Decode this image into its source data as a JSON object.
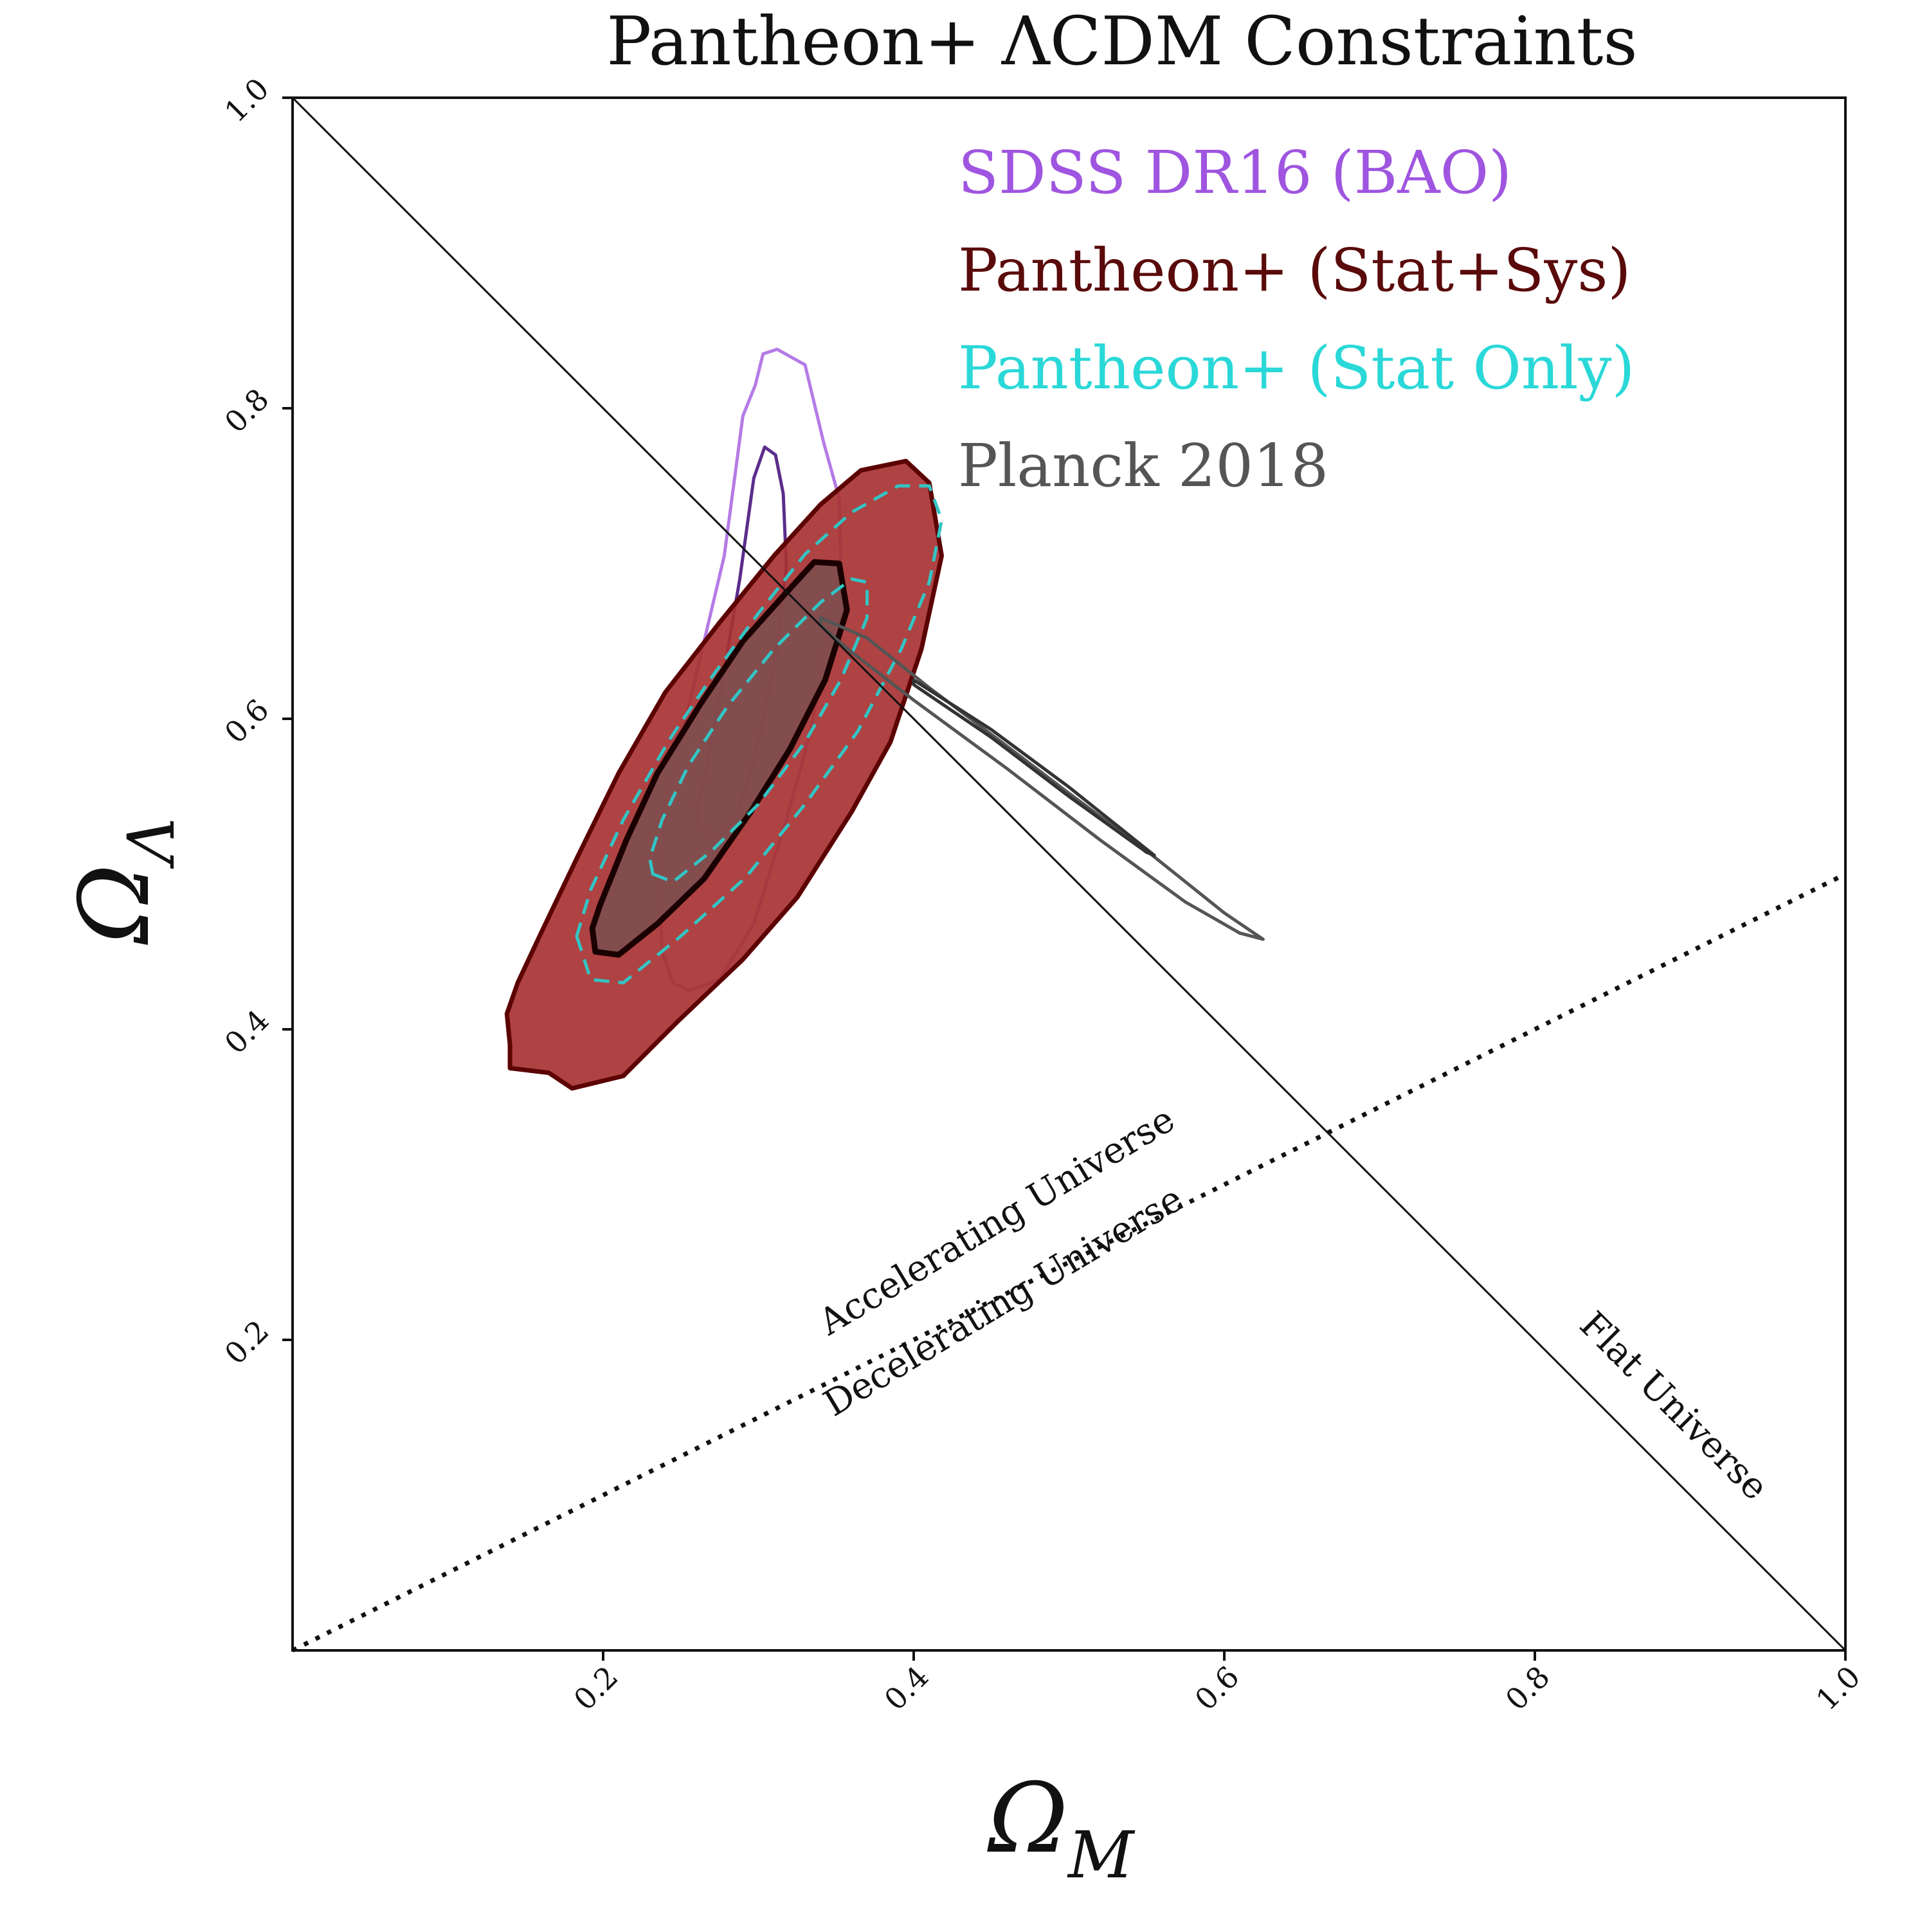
{
  "chart_data": {
    "type": "contour",
    "title": "Pantheon+ ΛCDM Constraints",
    "xlabel": "Ω_M",
    "ylabel": "Ω_Λ",
    "xlabel_main": "Ω",
    "xlabel_sub": "M",
    "ylabel_main": "Ω",
    "ylabel_sub": "Λ",
    "xlim": [
      0.0,
      1.0
    ],
    "ylim": [
      0.0,
      1.0
    ],
    "xticks": [
      {
        "value": 0.2,
        "label": "0.2"
      },
      {
        "value": 0.4,
        "label": "0.4"
      },
      {
        "value": 0.6,
        "label": "0.6"
      },
      {
        "value": 0.8,
        "label": "0.8"
      },
      {
        "value": 1.0,
        "label": "1.0"
      }
    ],
    "yticks": [
      {
        "value": 0.2,
        "label": "0.2"
      },
      {
        "value": 0.4,
        "label": "0.4"
      },
      {
        "value": 0.6,
        "label": "0.6"
      },
      {
        "value": 0.8,
        "label": "0.8"
      },
      {
        "value": 1.0,
        "label": "1.0"
      }
    ],
    "legend_placement": "top-right",
    "legend": [
      {
        "label": "SDSS DR16 (BAO)",
        "color": "#9f55e0"
      },
      {
        "label": "Pantheon+ (Stat+Sys)",
        "color": "#5a0a0a"
      },
      {
        "label": "Pantheon+ (Stat Only)",
        "color": "#2ad8d8"
      },
      {
        "label": "Planck 2018",
        "color": "#555555"
      }
    ],
    "reference_lines": [
      {
        "name": "flat-universe",
        "label": "Flat Universe",
        "points": [
          [
            0.0,
            1.0
          ],
          [
            1.0,
            0.0
          ]
        ],
        "style": "solid"
      },
      {
        "name": "acceleration-boundary",
        "label_above": "Accelerating Universe",
        "label_below": "Decelerating Universe",
        "points": [
          [
            0.0,
            0.0
          ],
          [
            1.0,
            0.5
          ]
        ],
        "style": "dotted"
      }
    ],
    "contours": [
      {
        "name": "sdss-bao-2sigma",
        "dataset": "SDSS DR16 (BAO)",
        "level": "2sigma",
        "stroke": "#b57be6",
        "fill": "none",
        "dash": false,
        "points": [
          [
            0.245,
            0.565
          ],
          [
            0.278,
            0.705
          ],
          [
            0.29,
            0.795
          ],
          [
            0.298,
            0.815
          ],
          [
            0.303,
            0.835
          ],
          [
            0.312,
            0.838
          ],
          [
            0.33,
            0.828
          ],
          [
            0.342,
            0.778
          ],
          [
            0.352,
            0.742
          ],
          [
            0.353,
            0.705
          ],
          [
            0.344,
            0.655
          ],
          [
            0.334,
            0.593
          ],
          [
            0.318,
            0.535
          ],
          [
            0.297,
            0.468
          ],
          [
            0.275,
            0.432
          ],
          [
            0.255,
            0.425
          ],
          [
            0.245,
            0.43
          ],
          [
            0.238,
            0.45
          ],
          [
            0.236,
            0.5
          ],
          [
            0.24,
            0.545
          ]
        ]
      },
      {
        "name": "sdss-bao-1sigma",
        "dataset": "SDSS DR16 (BAO)",
        "level": "1sigma",
        "stroke": "#5b2d8c",
        "fill": "none",
        "dash": false,
        "points": [
          [
            0.265,
            0.56
          ],
          [
            0.276,
            0.62
          ],
          [
            0.288,
            0.69
          ],
          [
            0.297,
            0.755
          ],
          [
            0.304,
            0.775
          ],
          [
            0.311,
            0.77
          ],
          [
            0.316,
            0.745
          ],
          [
            0.318,
            0.698
          ],
          [
            0.311,
            0.64
          ],
          [
            0.3,
            0.585
          ],
          [
            0.286,
            0.535
          ],
          [
            0.272,
            0.523
          ],
          [
            0.262,
            0.53
          ],
          [
            0.26,
            0.545
          ]
        ]
      },
      {
        "name": "pantheon-statsys-2sigma",
        "dataset": "Pantheon+ (Stat+Sys)",
        "level": "2sigma",
        "stroke": "#5c0303",
        "fill": "#a83232",
        "fill_opacity": 0.92,
        "dash": false,
        "points": [
          [
            0.14,
            0.39
          ],
          [
            0.14,
            0.375
          ],
          [
            0.165,
            0.372
          ],
          [
            0.18,
            0.362
          ],
          [
            0.213,
            0.37
          ],
          [
            0.248,
            0.405
          ],
          [
            0.29,
            0.445
          ],
          [
            0.325,
            0.485
          ],
          [
            0.36,
            0.54
          ],
          [
            0.385,
            0.585
          ],
          [
            0.405,
            0.645
          ],
          [
            0.418,
            0.705
          ],
          [
            0.41,
            0.752
          ],
          [
            0.395,
            0.766
          ],
          [
            0.366,
            0.76
          ],
          [
            0.34,
            0.738
          ],
          [
            0.31,
            0.705
          ],
          [
            0.275,
            0.662
          ],
          [
            0.24,
            0.617
          ],
          [
            0.21,
            0.565
          ],
          [
            0.183,
            0.51
          ],
          [
            0.16,
            0.462
          ],
          [
            0.145,
            0.43
          ],
          [
            0.138,
            0.41
          ]
        ]
      },
      {
        "name": "pantheon-statsys-1sigma",
        "dataset": "Pantheon+ (Stat+Sys)",
        "level": "1sigma",
        "stroke": "#1a0000",
        "fill": "#7e4e4f",
        "fill_opacity": 0.9,
        "dash": false,
        "points": [
          [
            0.195,
            0.45
          ],
          [
            0.21,
            0.448
          ],
          [
            0.235,
            0.468
          ],
          [
            0.265,
            0.497
          ],
          [
            0.295,
            0.54
          ],
          [
            0.32,
            0.58
          ],
          [
            0.343,
            0.625
          ],
          [
            0.357,
            0.67
          ],
          [
            0.352,
            0.7
          ],
          [
            0.336,
            0.701
          ],
          [
            0.315,
            0.678
          ],
          [
            0.29,
            0.65
          ],
          [
            0.263,
            0.61
          ],
          [
            0.235,
            0.565
          ],
          [
            0.215,
            0.522
          ],
          [
            0.198,
            0.48
          ],
          [
            0.193,
            0.465
          ]
        ]
      },
      {
        "name": "pantheon-statonly-2sigma",
        "dataset": "Pantheon+ (Stat Only)",
        "level": "2sigma",
        "stroke": "#33c4c4",
        "fill": "none",
        "dash": true,
        "points": [
          [
            0.183,
            0.46
          ],
          [
            0.192,
            0.432
          ],
          [
            0.213,
            0.43
          ],
          [
            0.25,
            0.46
          ],
          [
            0.292,
            0.498
          ],
          [
            0.33,
            0.545
          ],
          [
            0.364,
            0.592
          ],
          [
            0.392,
            0.645
          ],
          [
            0.41,
            0.688
          ],
          [
            0.418,
            0.728
          ],
          [
            0.41,
            0.75
          ],
          [
            0.39,
            0.75
          ],
          [
            0.36,
            0.733
          ],
          [
            0.33,
            0.706
          ],
          [
            0.3,
            0.668
          ],
          [
            0.27,
            0.627
          ],
          [
            0.243,
            0.587
          ],
          [
            0.213,
            0.535
          ],
          [
            0.192,
            0.49
          ]
        ]
      },
      {
        "name": "pantheon-statonly-1sigma",
        "dataset": "Pantheon+ (Stat Only)",
        "level": "1sigma",
        "stroke": "#33c4c4",
        "fill": "none",
        "dash": true,
        "points": [
          [
            0.232,
            0.5
          ],
          [
            0.245,
            0.495
          ],
          [
            0.27,
            0.515
          ],
          [
            0.3,
            0.545
          ],
          [
            0.33,
            0.585
          ],
          [
            0.353,
            0.625
          ],
          [
            0.37,
            0.665
          ],
          [
            0.37,
            0.688
          ],
          [
            0.36,
            0.69
          ],
          [
            0.34,
            0.675
          ],
          [
            0.31,
            0.645
          ],
          [
            0.28,
            0.608
          ],
          [
            0.255,
            0.57
          ],
          [
            0.238,
            0.535
          ],
          [
            0.23,
            0.51
          ]
        ]
      },
      {
        "name": "planck-2sigma",
        "dataset": "Planck 2018",
        "level": "2sigma",
        "stroke": "#555555",
        "fill": "none",
        "dash": false,
        "points": [
          [
            0.34,
            0.665
          ],
          [
            0.37,
            0.652
          ],
          [
            0.41,
            0.62
          ],
          [
            0.45,
            0.59
          ],
          [
            0.5,
            0.552
          ],
          [
            0.55,
            0.515
          ],
          [
            0.6,
            0.475
          ],
          [
            0.625,
            0.458
          ],
          [
            0.61,
            0.462
          ],
          [
            0.575,
            0.482
          ],
          [
            0.52,
            0.522
          ],
          [
            0.46,
            0.568
          ],
          [
            0.4,
            0.612
          ],
          [
            0.36,
            0.643
          ],
          [
            0.34,
            0.66
          ]
        ]
      },
      {
        "name": "planck-1sigma",
        "dataset": "Planck 2018",
        "level": "1sigma",
        "stroke": "#333333",
        "fill": "none",
        "dash": false,
        "points": [
          [
            0.4,
            0.625
          ],
          [
            0.45,
            0.593
          ],
          [
            0.5,
            0.556
          ],
          [
            0.555,
            0.512
          ],
          [
            0.55,
            0.514
          ],
          [
            0.5,
            0.55
          ],
          [
            0.45,
            0.588
          ],
          [
            0.4,
            0.622
          ]
        ]
      }
    ]
  }
}
